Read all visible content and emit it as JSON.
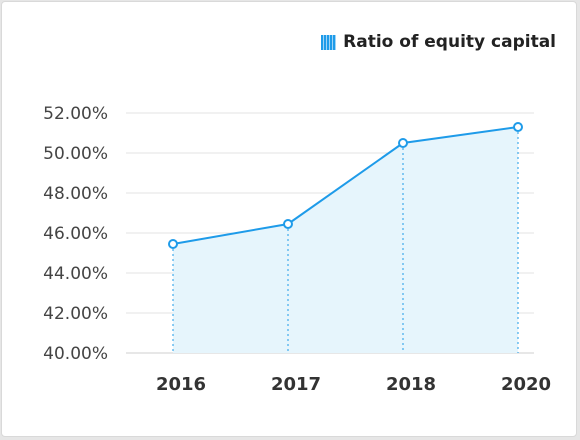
{
  "chart_data": {
    "type": "area",
    "categories": [
      "2016",
      "2017",
      "2018",
      "2020"
    ],
    "series": [
      {
        "name": "Ratio of equity capital",
        "values": [
          45.45,
          46.45,
          50.5,
          51.3
        ]
      }
    ],
    "ylim": [
      40,
      52
    ],
    "yticks": [
      "40.00%",
      "42.00%",
      "44.00%",
      "46.00%",
      "48.00%",
      "50.00%",
      "52.00%"
    ],
    "grid": true,
    "legend_position": "top-right",
    "colors": {
      "line": "#1e9be9",
      "fill": "#e6f5fc",
      "grid": "#e3e3e3"
    }
  }
}
